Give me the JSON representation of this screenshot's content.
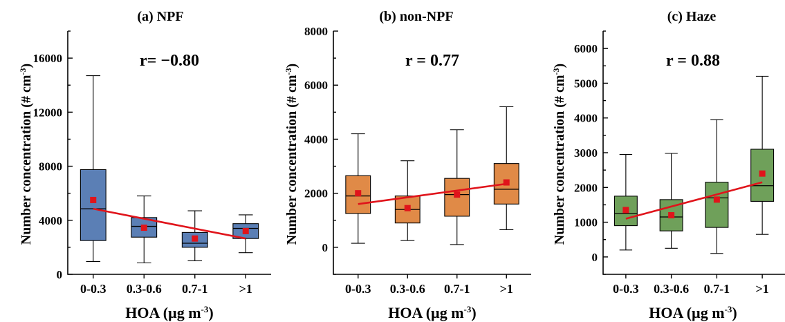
{
  "chart_data": [
    {
      "type": "box",
      "title": "(a) NPF",
      "annotation": "r= −0.80",
      "xlabel": "HOA (µg m",
      "xlabel_sup": "-3",
      "xlabel_end": ")",
      "ylabel": "Number concentration (# cm",
      "ylabel_sup": "-3",
      "ylabel_end": ")",
      "categories": [
        "0-0.3",
        "0.3-0.6",
        "0.7-1",
        ">1"
      ],
      "yticks": [
        0,
        4000,
        8000,
        12000,
        16000
      ],
      "ylim": [
        0,
        18000
      ],
      "color": "#5b7fb5",
      "boxes": [
        {
          "min": 950,
          "q1": 2500,
          "median": 4850,
          "q3": 7750,
          "max": 14700,
          "mean": 5500
        },
        {
          "min": 850,
          "q1": 2750,
          "median": 3550,
          "q3": 4200,
          "max": 5800,
          "mean": 3450
        },
        {
          "min": 1000,
          "q1": 2000,
          "median": 2300,
          "q3": 3100,
          "max": 4700,
          "mean": 2650
        },
        {
          "min": 1600,
          "q1": 2650,
          "median": 3400,
          "q3": 3750,
          "max": 4400,
          "mean": 3200
        }
      ],
      "trend": [
        4850,
        2650
      ]
    },
    {
      "type": "box",
      "title": "(b) non-NPF",
      "annotation": "r = 0.77",
      "xlabel": "HOA (µg m",
      "xlabel_sup": "-3",
      "xlabel_end": ")",
      "ylabel": "Number concentration (# cm",
      "ylabel_sup": "-3",
      "ylabel_end": ")",
      "categories": [
        "0-0.3",
        "0.3-0.6",
        "0.7-1",
        ">1"
      ],
      "yticks": [
        0,
        2000,
        4000,
        6000,
        8000
      ],
      "ylim": [
        -1000,
        8000
      ],
      "color": "#e08a47",
      "boxes": [
        {
          "min": 150,
          "q1": 1250,
          "median": 1900,
          "q3": 2650,
          "max": 4200,
          "mean": 2000
        },
        {
          "min": 250,
          "q1": 900,
          "median": 1400,
          "q3": 1900,
          "max": 3200,
          "mean": 1450
        },
        {
          "min": 100,
          "q1": 1150,
          "median": 1950,
          "q3": 2550,
          "max": 4350,
          "mean": 1950
        },
        {
          "min": 650,
          "q1": 1600,
          "median": 2150,
          "q3": 3100,
          "max": 5200,
          "mean": 2400
        }
      ],
      "trend": [
        1600,
        2350
      ]
    },
    {
      "type": "box",
      "title": "(c)  Haze",
      "annotation": "r = 0.88",
      "xlabel": "HOA (µg m",
      "xlabel_sup": "-3",
      "xlabel_end": ")",
      "ylabel": "Number concentration (# cm",
      "ylabel_sup": "-3",
      "ylabel_end": ")",
      "categories": [
        "0-0.3",
        "0.3-0.6",
        "0.7-1",
        ">1"
      ],
      "yticks": [
        0,
        1000,
        2000,
        3000,
        4000,
        5000,
        6000
      ],
      "ylim": [
        -500,
        6500
      ],
      "color": "#6fa05a",
      "boxes": [
        {
          "min": 200,
          "q1": 900,
          "median": 1250,
          "q3": 1750,
          "max": 2950,
          "mean": 1350
        },
        {
          "min": 250,
          "q1": 750,
          "median": 1150,
          "q3": 1650,
          "max": 2980,
          "mean": 1200
        },
        {
          "min": 100,
          "q1": 850,
          "median": 1700,
          "q3": 2150,
          "max": 3950,
          "mean": 1650
        },
        {
          "min": 650,
          "q1": 1600,
          "median": 2050,
          "q3": 3100,
          "max": 5200,
          "mean": 2400
        }
      ],
      "trend": [
        1100,
        2150
      ]
    }
  ]
}
